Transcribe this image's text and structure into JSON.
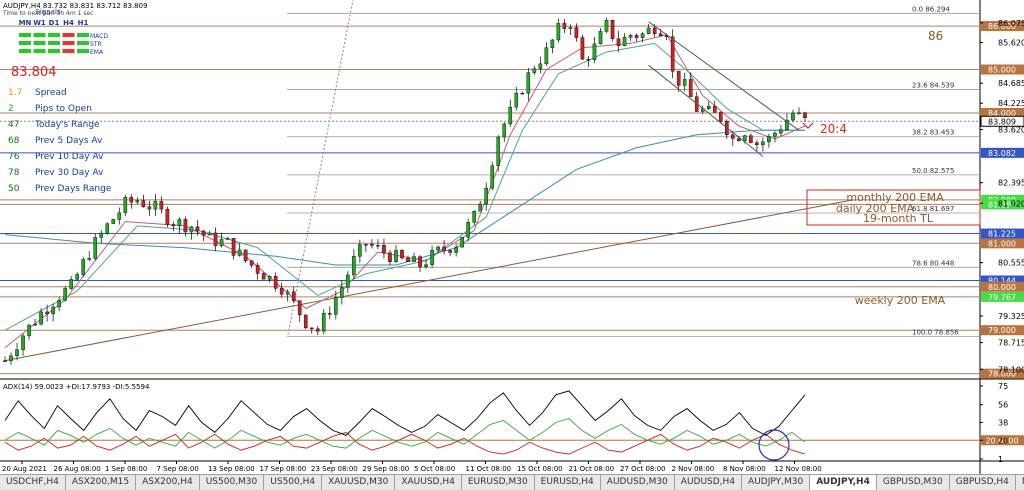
{
  "header": {
    "symbol_line": "AUDJPY,H4  83.732 83.831 83.712 83.809",
    "sub_line": "Time to next bar: 3h 4m 1 sec",
    "signals_title": "Signals",
    "timeframes": [
      "MN",
      "W1",
      "D1",
      "H4",
      "H1"
    ],
    "signal_rows": [
      {
        "label": "MACD",
        "colors": [
          "#22cc22",
          "#22cc22",
          "#22cc22",
          "#ee3333",
          "#22cc22"
        ]
      },
      {
        "label": "STR",
        "colors": [
          "#22cc22",
          "#22cc22",
          "#22cc22",
          "#ee3333",
          "#22cc22"
        ]
      },
      {
        "label": "EMA",
        "colors": [
          "#22cc22",
          "#22cc22",
          "#22cc22",
          "#ee3333",
          "#22cc22"
        ]
      }
    ]
  },
  "info_panel": {
    "price": "83.804",
    "price_color": "#dd2222",
    "rows": [
      {
        "value": "1.7",
        "label": "Spread",
        "color": "#ff8800"
      },
      {
        "value": "2",
        "label": "Pips to Open",
        "color": "#22aa22"
      },
      {
        "value": "47",
        "label": "Today's Range",
        "color": "#117711"
      },
      {
        "value": "68",
        "label": "Prev 5 Days Av",
        "color": "#117711"
      },
      {
        "value": "76",
        "label": "Prev 10 Day Av",
        "color": "#117711"
      },
      {
        "value": "78",
        "label": "Prev 30 Day Av",
        "color": "#117711"
      },
      {
        "value": "50",
        "label": "Prev Days Range",
        "color": "#117711"
      }
    ]
  },
  "annotations": {
    "label_86": "86",
    "label_20_4": "20:4",
    "label_monthly": "monthly 200 EMA",
    "label_daily": "daily 200 EMA",
    "label_tl": "19-month TL",
    "label_weekly": "weekly 200 EMA"
  },
  "chart_data": {
    "type": "candlestick",
    "symbol": "AUDJPY",
    "timeframe": "H4",
    "ylim": [
      77.9,
      86.6
    ],
    "y_ticks": [
      "86.075",
      "85.620",
      "84.685",
      "84.225",
      "83.620",
      "82.395",
      "81.920",
      "80.555",
      "79.325",
      "78.715",
      "78.100"
    ],
    "tick_values": [
      86.075,
      85.62,
      84.685,
      84.225,
      83.62,
      82.395,
      81.92,
      80.555,
      79.325,
      78.715,
      78.1
    ],
    "x_labels": [
      "20 Aug 2021",
      "26 Aug 08:00",
      "1 Sep 08:00",
      "7 Sep 08:00",
      "13 Sep 08:00",
      "17 Sep 08:00",
      "23 Sep 08:00",
      "29 Sep 08:00",
      "5 Oct 08:00",
      "11 Oct 08:00",
      "15 Oct 08:00",
      "21 Oct 08:00",
      "27 Oct 08:00",
      "2 Nov 08:00",
      "8 Nov 08:00",
      "12 Nov 08:00"
    ],
    "price_path": [
      [
        0,
        78.3
      ],
      [
        3,
        78.9
      ],
      [
        6,
        79.4
      ],
      [
        9,
        79.8
      ],
      [
        11,
        80.0
      ],
      [
        14,
        80.8
      ],
      [
        17,
        81.4
      ],
      [
        20,
        81.9
      ],
      [
        22,
        82.0
      ],
      [
        25,
        81.8
      ],
      [
        28,
        81.5
      ],
      [
        31,
        81.4
      ],
      [
        34,
        81.1
      ],
      [
        37,
        81.0
      ],
      [
        40,
        80.6
      ],
      [
        43,
        80.3
      ],
      [
        46,
        80.0
      ],
      [
        48,
        79.6
      ],
      [
        50,
        79.2
      ],
      [
        52,
        79.0
      ],
      [
        54,
        79.5
      ],
      [
        56,
        80.0
      ],
      [
        58,
        80.6
      ],
      [
        60,
        81.0
      ],
      [
        63,
        80.8
      ],
      [
        66,
        80.6
      ],
      [
        69,
        80.5
      ],
      [
        72,
        80.8
      ],
      [
        75,
        81.0
      ],
      [
        78,
        81.6
      ],
      [
        80,
        82.4
      ],
      [
        82,
        83.5
      ],
      [
        84,
        84.0
      ],
      [
        86,
        84.6
      ],
      [
        88,
        85.1
      ],
      [
        90,
        85.4
      ],
      [
        92,
        85.9
      ],
      [
        94,
        86.1
      ],
      [
        96,
        85.2
      ],
      [
        98,
        85.5
      ],
      [
        100,
        86.0
      ],
      [
        102,
        85.6
      ],
      [
        104,
        85.8
      ],
      [
        106,
        85.8
      ],
      [
        108,
        86.0
      ],
      [
        110,
        85.9
      ],
      [
        111,
        84.9
      ],
      [
        113,
        84.6
      ],
      [
        115,
        84.1
      ],
      [
        117,
        84.0
      ],
      [
        119,
        83.9
      ],
      [
        121,
        83.4
      ],
      [
        123,
        83.6
      ],
      [
        125,
        83.3
      ],
      [
        127,
        83.4
      ],
      [
        129,
        83.7
      ],
      [
        131,
        84.0
      ],
      [
        133,
        83.81
      ]
    ],
    "emas": [
      {
        "name": "EMA fast",
        "color": "#c85a78",
        "values": [
          [
            0,
            78.6
          ],
          [
            10,
            79.7
          ],
          [
            20,
            81.5
          ],
          [
            30,
            81.4
          ],
          [
            40,
            80.7
          ],
          [
            50,
            79.5
          ],
          [
            56,
            79.9
          ],
          [
            62,
            80.8
          ],
          [
            70,
            80.6
          ],
          [
            78,
            81.3
          ],
          [
            84,
            83.5
          ],
          [
            90,
            85.0
          ],
          [
            96,
            85.5
          ],
          [
            104,
            85.6
          ],
          [
            110,
            85.8
          ],
          [
            116,
            84.4
          ],
          [
            122,
            83.7
          ],
          [
            128,
            83.4
          ],
          [
            133,
            83.7
          ]
        ]
      },
      {
        "name": "EMA medium",
        "color": "#4aa890",
        "values": [
          [
            0,
            79.0
          ],
          [
            12,
            79.9
          ],
          [
            22,
            81.4
          ],
          [
            32,
            81.3
          ],
          [
            42,
            80.9
          ],
          [
            52,
            79.8
          ],
          [
            60,
            80.3
          ],
          [
            70,
            80.6
          ],
          [
            80,
            81.6
          ],
          [
            86,
            83.6
          ],
          [
            92,
            84.9
          ],
          [
            100,
            85.4
          ],
          [
            108,
            85.6
          ],
          [
            114,
            84.9
          ],
          [
            120,
            84.1
          ],
          [
            126,
            83.6
          ],
          [
            133,
            83.6
          ]
        ]
      },
      {
        "name": "EMA slow",
        "color": "#3a8fb0",
        "values": [
          [
            0,
            81.2
          ],
          [
            15,
            81.0
          ],
          [
            30,
            80.9
          ],
          [
            45,
            80.7
          ],
          [
            55,
            80.5
          ],
          [
            65,
            80.5
          ],
          [
            75,
            80.9
          ],
          [
            85,
            81.8
          ],
          [
            95,
            82.7
          ],
          [
            105,
            83.2
          ],
          [
            115,
            83.5
          ],
          [
            125,
            83.6
          ],
          [
            133,
            83.6
          ]
        ]
      }
    ],
    "levels": [
      {
        "price": 86.0,
        "label": "86.000",
        "color": "#b08060",
        "tag": "brown"
      },
      {
        "price": 85.0,
        "label": "85.000",
        "color": "#b08060",
        "tag": "brown"
      },
      {
        "price": 84.0,
        "label": "84.000",
        "color": "#b08060",
        "tag": "brown"
      },
      {
        "price": 83.082,
        "label": "83.082",
        "color": "#3355cc",
        "tag": "blue"
      },
      {
        "price": 82.0,
        "label": "82.000",
        "color": "#b08060",
        "tag": "green"
      },
      {
        "price": 81.897,
        "label": "81.897",
        "color": "#b08060",
        "tag": "green"
      },
      {
        "price": 81.225,
        "label": "81.225",
        "color": "#3355cc",
        "tag": "blue"
      },
      {
        "price": 81.0,
        "label": "81.000",
        "color": "#b08060",
        "tag": "brown"
      },
      {
        "price": 80.144,
        "label": "80.144",
        "color": "#3355cc",
        "tag": "blue"
      },
      {
        "price": 80.0,
        "label": "80.000",
        "color": "#b08060",
        "tag": "brown"
      },
      {
        "price": 79.767,
        "label": "79.767",
        "color": "#b08060",
        "tag": "green"
      },
      {
        "price": 79.0,
        "label": "79.000",
        "color": "#b08060",
        "tag": "brown"
      },
      {
        "price": 78.0,
        "label": "78.000",
        "color": "#b08060",
        "tag": "brown"
      }
    ],
    "current_price": {
      "price": 83.809,
      "label": "83.809"
    },
    "fib_levels": [
      {
        "label": "0.0  86.294",
        "price": 86.294
      },
      {
        "label": "23.6  84.539",
        "price": 84.539
      },
      {
        "label": "38.2  83.453",
        "price": 83.453
      },
      {
        "label": "50.0  82.575",
        "price": 82.575
      },
      {
        "label": "61.8  81.697",
        "price": 81.697
      },
      {
        "label": "78.6  80.448",
        "price": 80.448
      },
      {
        "label": "100.0  78.856",
        "price": 78.856
      }
    ],
    "trendline": {
      "from": [
        0,
        78.3
      ],
      "to": [
        141,
        82.0
      ]
    },
    "channel": {
      "upper": [
        [
          107,
          86.1
        ],
        [
          132,
          83.6
        ]
      ],
      "lower": [
        [
          107,
          85.1
        ],
        [
          126,
          83.0
        ]
      ]
    },
    "adx": {
      "label": "ADX(14) 59.0023 +DI:17.9793 -DI:5.5594",
      "y_ticks": [
        "75",
        "56",
        "38",
        "20",
        "1"
      ],
      "tick_values": [
        75,
        56,
        38,
        20,
        1
      ],
      "level": 20.0,
      "level_label": "20.0000",
      "ylim": [
        0,
        80
      ],
      "adx_line": [
        40,
        60,
        45,
        32,
        55,
        42,
        30,
        48,
        62,
        42,
        30,
        50,
        44,
        35,
        55,
        38,
        28,
        42,
        60,
        48,
        36,
        30,
        44,
        52,
        40,
        30,
        25,
        38,
        52,
        44,
        35,
        28,
        34,
        46,
        38,
        30,
        42,
        58,
        68,
        50,
        35,
        48,
        66,
        70,
        55,
        40,
        50,
        62,
        45,
        35,
        30,
        44,
        52,
        40,
        30,
        36,
        48,
        32,
        25,
        34,
        50,
        66
      ],
      "plus_di": [
        20,
        28,
        22,
        15,
        30,
        25,
        18,
        26,
        32,
        22,
        15,
        22,
        18,
        14,
        28,
        20,
        12,
        20,
        30,
        24,
        18,
        15,
        22,
        26,
        20,
        14,
        12,
        22,
        30,
        24,
        18,
        14,
        18,
        28,
        22,
        16,
        26,
        36,
        40,
        30,
        20,
        28,
        38,
        42,
        30,
        22,
        30,
        36,
        26,
        20,
        16,
        22,
        30,
        24,
        16,
        20,
        26,
        18,
        14,
        20,
        28,
        18
      ],
      "minus_di": [
        18,
        10,
        14,
        22,
        12,
        15,
        24,
        14,
        10,
        16,
        24,
        14,
        20,
        26,
        12,
        18,
        26,
        16,
        10,
        14,
        20,
        24,
        14,
        12,
        18,
        24,
        28,
        16,
        10,
        14,
        20,
        26,
        20,
        12,
        16,
        22,
        14,
        8,
        6,
        10,
        18,
        12,
        8,
        6,
        12,
        18,
        10,
        8,
        14,
        20,
        26,
        16,
        10,
        14,
        22,
        18,
        12,
        20,
        26,
        16,
        10,
        6
      ]
    }
  },
  "tabs": [
    "USDCHF,H4",
    "ASX200,M15",
    "ASX200,H4",
    "US500,M30",
    "US500,H4",
    "XAUUSD,M30",
    "XAUUSD,H4",
    "EURUSD,M30",
    "EURUSD,H4",
    "AUDUSD,M30",
    "AUDUSD,H4",
    "AUDJPY,M30",
    "AUDJPY,H4",
    "GBPUSD,M30",
    "GBPUSD,H4",
    "NZDUSD,H4",
    "NZDUSD,M30",
    "USD"
  ],
  "active_tab": "AUDJPY,H4"
}
